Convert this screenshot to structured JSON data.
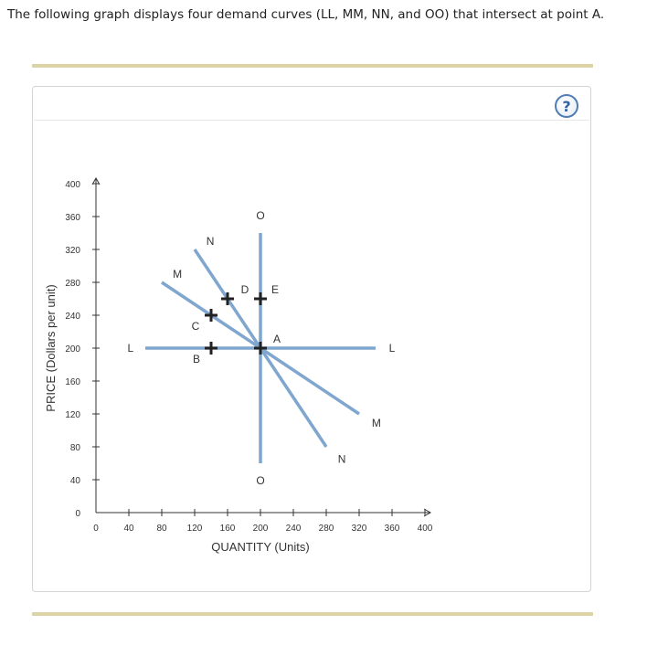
{
  "question_text": "The following graph displays four demand curves (LL, MM, NN, and OO) that intersect at point A.",
  "help_button": {
    "label": "?",
    "icon": "question-mark-icon"
  },
  "colors": {
    "curve": "#7ea6cf",
    "axis": "#333333",
    "rule": "#dcd3a6",
    "marker": "#222222"
  },
  "chart_data": {
    "type": "line",
    "title": "",
    "xlabel": "QUANTITY (Units)",
    "ylabel": "PRICE (Dollars per unit)",
    "xlim": [
      0,
      400
    ],
    "ylim": [
      0,
      400
    ],
    "x_ticks": [
      0,
      40,
      80,
      120,
      160,
      200,
      240,
      280,
      320,
      360,
      400
    ],
    "y_ticks": [
      0,
      40,
      80,
      120,
      160,
      200,
      240,
      280,
      320,
      360,
      400
    ],
    "grid": false,
    "series": [
      {
        "name": "LL",
        "label": "L",
        "points": [
          [
            60,
            200
          ],
          [
            340,
            200
          ]
        ]
      },
      {
        "name": "MM",
        "label": "M",
        "points": [
          [
            80,
            280
          ],
          [
            320,
            120
          ]
        ]
      },
      {
        "name": "NN",
        "label": "N",
        "points": [
          [
            120,
            320
          ],
          [
            280,
            80
          ]
        ]
      },
      {
        "name": "OO",
        "label": "O",
        "points": [
          [
            200,
            340
          ],
          [
            200,
            60
          ]
        ]
      }
    ],
    "curve_labels": [
      {
        "text": "L",
        "x": 42,
        "y": 200
      },
      {
        "text": "L",
        "x": 360,
        "y": 200
      },
      {
        "text": "M",
        "x": 99,
        "y": 290
      },
      {
        "text": "M",
        "x": 341,
        "y": 109
      },
      {
        "text": "N",
        "x": 139,
        "y": 330
      },
      {
        "text": "N",
        "x": 299,
        "y": 65
      },
      {
        "text": "O",
        "x": 200,
        "y": 361
      },
      {
        "text": "O",
        "x": 200,
        "y": 39
      }
    ],
    "points": [
      {
        "name": "A",
        "x": 200,
        "y": 200,
        "label_dx": 18,
        "label_dy": -10
      },
      {
        "name": "B",
        "x": 140,
        "y": 200,
        "label_dx": -16,
        "label_dy": 12
      },
      {
        "name": "C",
        "x": 140,
        "y": 240,
        "label_dx": -17,
        "label_dy": 12
      },
      {
        "name": "D",
        "x": 160,
        "y": 260,
        "label_dx": 19,
        "label_dy": -10
      },
      {
        "name": "E",
        "x": 200,
        "y": 260,
        "label_dx": 16,
        "label_dy": -10
      }
    ]
  }
}
